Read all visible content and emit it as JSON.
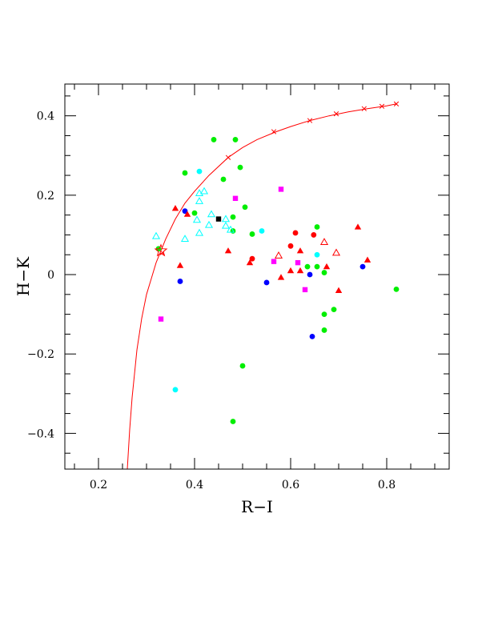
{
  "chart_data": {
    "type": "scatter",
    "title": "",
    "xlabel": "R−I",
    "ylabel": "H−K",
    "xlim": [
      0.13,
      0.93
    ],
    "ylim": [
      -0.49,
      0.48
    ],
    "x_ticks": [
      {
        "value": 0.2,
        "label": "0.2"
      },
      {
        "value": 0.4,
        "label": "0.4"
      },
      {
        "value": 0.6,
        "label": "0.6"
      },
      {
        "value": 0.8,
        "label": "0.8"
      }
    ],
    "y_ticks": [
      {
        "value": -0.4,
        "label": "−0.4"
      },
      {
        "value": -0.2,
        "label": "−0.2"
      },
      {
        "value": 0,
        "label": "0"
      },
      {
        "value": 0.2,
        "label": "0.2"
      },
      {
        "value": 0.4,
        "label": "0.4"
      }
    ],
    "grid": false,
    "curve": {
      "color": "#ff0000",
      "marker": "cross",
      "points": [
        [
          0.26,
          -0.49
        ],
        [
          0.265,
          -0.39
        ],
        [
          0.27,
          -0.31
        ],
        [
          0.275,
          -0.25
        ],
        [
          0.28,
          -0.19
        ],
        [
          0.285,
          -0.15
        ],
        [
          0.29,
          -0.11
        ],
        [
          0.295,
          -0.08
        ],
        [
          0.3,
          -0.05
        ],
        [
          0.31,
          -0.01
        ],
        [
          0.32,
          0.03
        ],
        [
          0.33,
          0.06
        ],
        [
          0.34,
          0.09
        ],
        [
          0.36,
          0.14
        ],
        [
          0.38,
          0.18
        ],
        [
          0.4,
          0.21
        ],
        [
          0.43,
          0.25
        ],
        [
          0.47,
          0.295
        ],
        [
          0.5,
          0.32
        ],
        [
          0.53,
          0.34
        ],
        [
          0.57,
          0.36
        ],
        [
          0.6,
          0.373
        ],
        [
          0.64,
          0.388
        ],
        [
          0.68,
          0.4
        ],
        [
          0.72,
          0.41
        ],
        [
          0.76,
          0.418
        ],
        [
          0.8,
          0.425
        ],
        [
          0.82,
          0.43
        ]
      ],
      "marked_points": [
        [
          0.333,
          0.055
        ],
        [
          0.47,
          0.295
        ],
        [
          0.565,
          0.36
        ],
        [
          0.64,
          0.388
        ],
        [
          0.695,
          0.405
        ],
        [
          0.753,
          0.418
        ],
        [
          0.79,
          0.424
        ],
        [
          0.82,
          0.43
        ]
      ]
    },
    "star_marker": {
      "x": 0.33,
      "y": 0.06,
      "color": "#ff0000"
    },
    "series": [
      {
        "marker": "circle",
        "color": "#00ee00",
        "points": [
          [
            0.44,
            0.34
          ],
          [
            0.485,
            0.34
          ],
          [
            0.38,
            0.256
          ],
          [
            0.495,
            0.27
          ],
          [
            0.46,
            0.24
          ],
          [
            0.505,
            0.17
          ],
          [
            0.4,
            0.155
          ],
          [
            0.48,
            0.145
          ],
          [
            0.48,
            0.11
          ],
          [
            0.52,
            0.102
          ],
          [
            0.325,
            0.065
          ],
          [
            0.655,
            0.12
          ],
          [
            0.635,
            0.02
          ],
          [
            0.655,
            0.02
          ],
          [
            0.67,
            0.005
          ],
          [
            0.69,
            -0.088
          ],
          [
            0.67,
            -0.1
          ],
          [
            0.67,
            -0.14
          ],
          [
            0.82,
            -0.037
          ],
          [
            0.5,
            -0.23
          ],
          [
            0.48,
            -0.37
          ]
        ]
      },
      {
        "marker": "circle",
        "color": "#00ffff",
        "points": [
          [
            0.41,
            0.26
          ],
          [
            0.54,
            0.11
          ],
          [
            0.655,
            0.05
          ],
          [
            0.36,
            -0.29
          ]
        ]
      },
      {
        "marker": "circle",
        "color": "#0000ff",
        "points": [
          [
            0.38,
            0.16
          ],
          [
            0.37,
            -0.017
          ],
          [
            0.55,
            -0.02
          ],
          [
            0.64,
            0.0
          ],
          [
            0.75,
            0.02
          ],
          [
            0.645,
            -0.156
          ]
        ]
      },
      {
        "marker": "circle",
        "color": "#ff0000",
        "points": [
          [
            0.61,
            0.105
          ],
          [
            0.648,
            0.1
          ],
          [
            0.6,
            0.072
          ],
          [
            0.52,
            0.04
          ]
        ]
      },
      {
        "marker": "triangle",
        "color": "#ff0000",
        "points": [
          [
            0.36,
            0.167
          ],
          [
            0.385,
            0.152
          ],
          [
            0.37,
            0.023
          ],
          [
            0.47,
            0.06
          ],
          [
            0.515,
            0.03
          ],
          [
            0.58,
            -0.007
          ],
          [
            0.6,
            0.01
          ],
          [
            0.62,
            0.06
          ],
          [
            0.62,
            0.01
          ],
          [
            0.675,
            0.02
          ],
          [
            0.7,
            -0.04
          ],
          [
            0.74,
            0.12
          ],
          [
            0.76,
            0.037
          ]
        ]
      },
      {
        "marker": "triangle-open",
        "color": "#ff0000",
        "points": [
          [
            0.575,
            0.048
          ],
          [
            0.67,
            0.082
          ],
          [
            0.695,
            0.055
          ]
        ]
      },
      {
        "marker": "triangle-open",
        "color": "#00ffff",
        "points": [
          [
            0.41,
            0.205
          ],
          [
            0.42,
            0.21
          ],
          [
            0.41,
            0.185
          ],
          [
            0.435,
            0.152
          ],
          [
            0.405,
            0.138
          ],
          [
            0.465,
            0.14
          ],
          [
            0.43,
            0.125
          ],
          [
            0.465,
            0.123
          ],
          [
            0.475,
            0.113
          ],
          [
            0.41,
            0.105
          ],
          [
            0.32,
            0.097
          ],
          [
            0.38,
            0.09
          ]
        ]
      },
      {
        "marker": "square",
        "color": "#ff00ff",
        "points": [
          [
            0.485,
            0.192
          ],
          [
            0.58,
            0.215
          ],
          [
            0.565,
            0.033
          ],
          [
            0.615,
            0.03
          ],
          [
            0.63,
            -0.038
          ],
          [
            0.33,
            -0.112
          ]
        ]
      },
      {
        "marker": "square",
        "color": "#000000",
        "points": [
          [
            0.45,
            0.14
          ]
        ]
      }
    ]
  }
}
